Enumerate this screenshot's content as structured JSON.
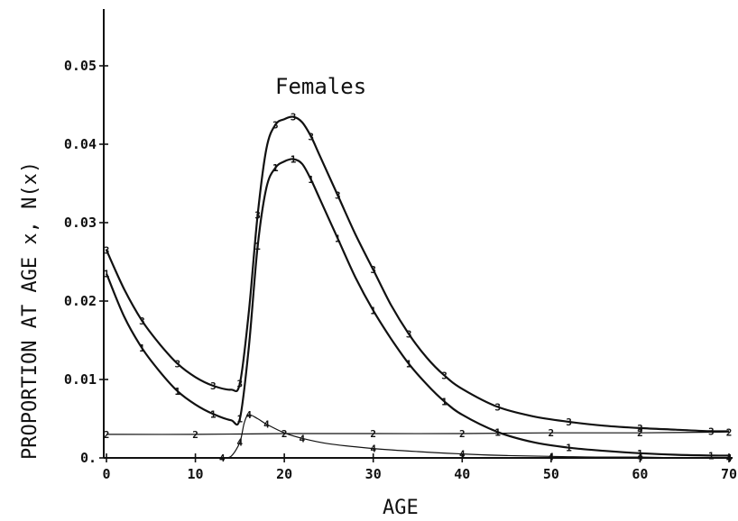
{
  "chart_data": {
    "type": "line",
    "title": "Females",
    "xlabel": "AGE",
    "ylabel": "PROPORTION AT AGE x, N(x)",
    "xlim": [
      0,
      70
    ],
    "ylim": [
      0,
      0.057
    ],
    "x_ticks": [
      0,
      10,
      20,
      30,
      40,
      50,
      60,
      70
    ],
    "x_tick_labels": [
      "0",
      "10",
      "20",
      "30",
      "40",
      "50",
      "60",
      "70"
    ],
    "y_ticks": [
      0,
      0.01,
      0.02,
      0.03,
      0.04,
      0.05
    ],
    "y_tick_labels": [
      "0.",
      "0.01",
      "0.02",
      "0.03",
      "0.04",
      "0.05"
    ],
    "grid": false,
    "series": [
      {
        "marker": "3",
        "x": [
          0,
          2,
          4,
          6,
          8,
          10,
          12,
          14,
          15,
          16,
          17,
          18,
          19,
          20,
          21,
          22,
          23,
          24,
          26,
          28,
          30,
          32,
          34,
          36,
          38,
          40,
          44,
          48,
          52,
          56,
          60,
          64,
          68,
          70
        ],
        "y": [
          0.0265,
          0.0215,
          0.0175,
          0.0145,
          0.012,
          0.0103,
          0.0092,
          0.0087,
          0.0095,
          0.0185,
          0.031,
          0.0395,
          0.0425,
          0.0432,
          0.0435,
          0.0428,
          0.041,
          0.0385,
          0.0335,
          0.0285,
          0.024,
          0.0195,
          0.0158,
          0.0128,
          0.0105,
          0.0088,
          0.0065,
          0.0053,
          0.0046,
          0.0041,
          0.0038,
          0.0036,
          0.0034,
          0.0034
        ]
      },
      {
        "marker": "1",
        "x": [
          0,
          2,
          4,
          6,
          8,
          10,
          12,
          14,
          15,
          16,
          17,
          18,
          19,
          20,
          21,
          22,
          23,
          24,
          26,
          28,
          30,
          32,
          34,
          36,
          38,
          40,
          44,
          48,
          52,
          56,
          60,
          64,
          68,
          70
        ],
        "y": [
          0.0235,
          0.018,
          0.014,
          0.011,
          0.0085,
          0.0068,
          0.0056,
          0.0048,
          0.005,
          0.014,
          0.027,
          0.0345,
          0.037,
          0.0378,
          0.0381,
          0.0375,
          0.0355,
          0.033,
          0.028,
          0.023,
          0.0188,
          0.0152,
          0.012,
          0.0094,
          0.0072,
          0.0055,
          0.0033,
          0.002,
          0.0013,
          0.0009,
          0.0006,
          0.0004,
          0.0003,
          0.0003
        ]
      },
      {
        "marker": "2",
        "x": [
          0,
          10,
          20,
          30,
          40,
          50,
          60,
          70
        ],
        "y": [
          0.003,
          0.003,
          0.0031,
          0.0031,
          0.0031,
          0.0032,
          0.0032,
          0.0033
        ]
      },
      {
        "marker": "4",
        "x": [
          13,
          14,
          15,
          15.5,
          16,
          17,
          18,
          20,
          22,
          25,
          30,
          35,
          40,
          45,
          50,
          55,
          60,
          65,
          70
        ],
        "y": [
          0.0,
          0.0002,
          0.002,
          0.0045,
          0.0055,
          0.005,
          0.0043,
          0.0032,
          0.0025,
          0.0018,
          0.0012,
          0.0008,
          0.0005,
          0.0003,
          0.0002,
          0.0001,
          0.0001,
          0.0,
          0.0
        ]
      }
    ]
  }
}
